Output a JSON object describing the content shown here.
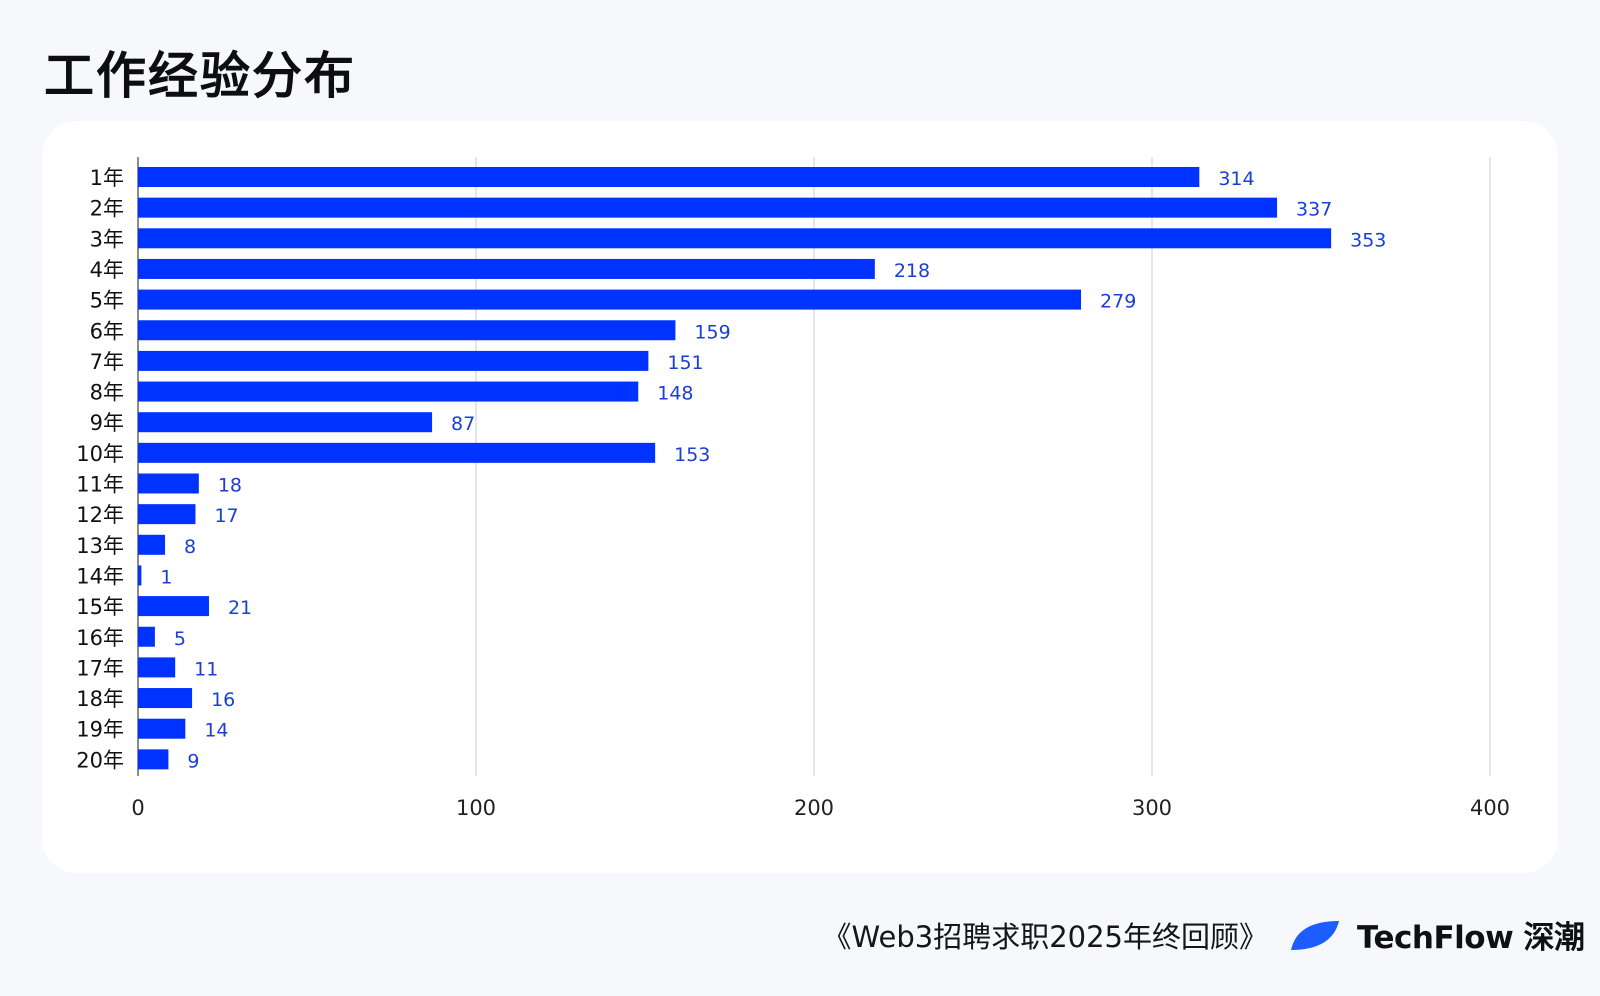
{
  "page": {
    "title": "工作经验分布",
    "footer_caption": "《Web3招聘求职2025年终回顾》",
    "brand_name": "TechFlow 深潮"
  },
  "colors": {
    "bar": "#0033ff",
    "value_label": "#1a3fd6",
    "grid": "#d9d9d9",
    "brand_logo": "#1d5cff"
  },
  "chart_data": {
    "type": "bar",
    "orientation": "horizontal",
    "categories": [
      "1年",
      "2年",
      "3年",
      "4年",
      "5年",
      "6年",
      "7年",
      "8年",
      "9年",
      "10年",
      "11年",
      "12年",
      "13年",
      "14年",
      "15年",
      "16年",
      "17年",
      "18年",
      "19年",
      "20年"
    ],
    "values": [
      314,
      337,
      353,
      218,
      279,
      159,
      151,
      148,
      87,
      153,
      18,
      17,
      8,
      1,
      21,
      5,
      11,
      16,
      14,
      9
    ],
    "xlim": [
      0,
      400
    ],
    "xticks": [
      0,
      100,
      200,
      300,
      400
    ],
    "grid": true,
    "data_labels": true,
    "legend": "none"
  }
}
